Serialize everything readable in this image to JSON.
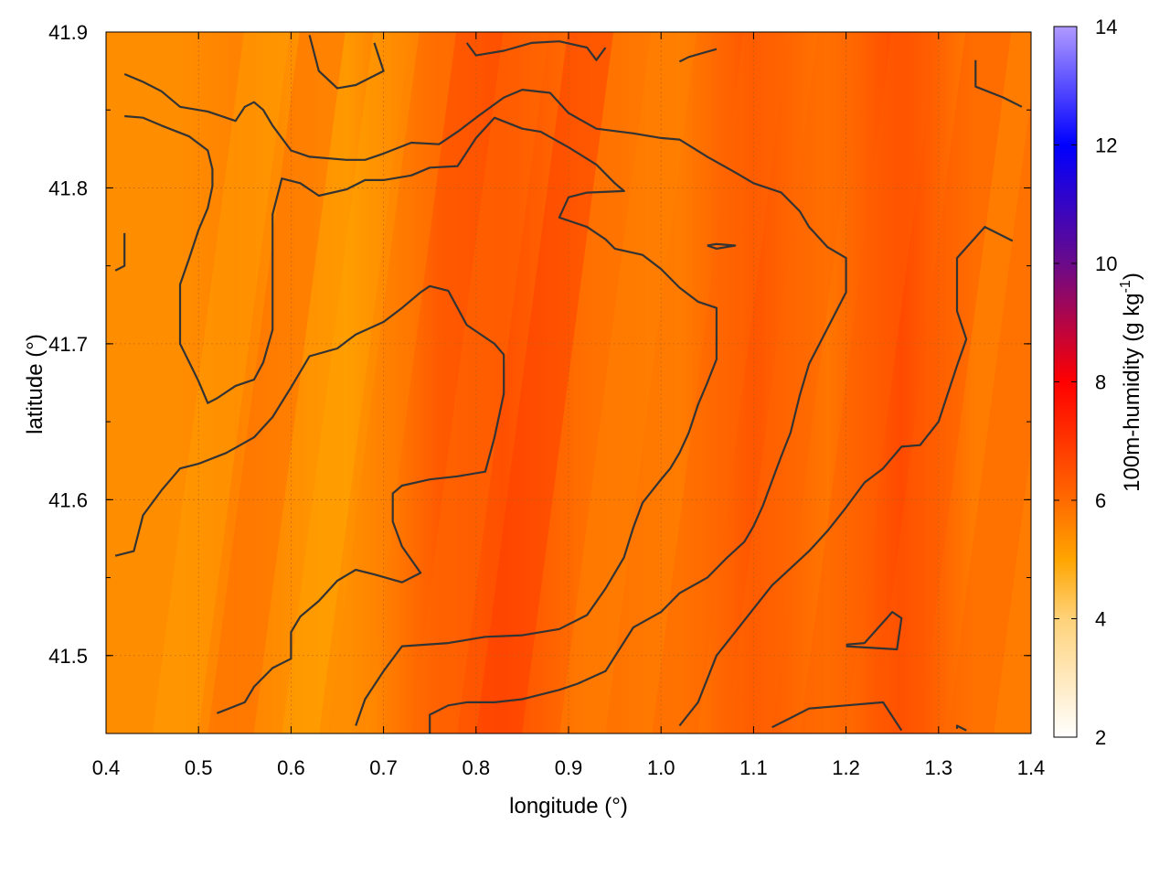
{
  "chart_data": {
    "type": "heatmap",
    "title": "",
    "xlabel": "longitude (°)",
    "ylabel": "latitude (°)",
    "xlim": [
      0.4,
      1.4
    ],
    "ylim": [
      41.45,
      41.9
    ],
    "x_ticks": [
      "0.4",
      "0.5",
      "0.6",
      "0.7",
      "0.8",
      "0.9",
      "1.0",
      "1.1",
      "1.2",
      "1.3",
      "1.4"
    ],
    "y_ticks": [
      "41.5",
      "41.6",
      "41.7",
      "41.8",
      "41.9"
    ],
    "grid": true,
    "colorbar": {
      "label_main": "100m-humidity (g kg",
      "label_sup": "-1",
      "label_end": ")",
      "range": [
        2,
        14
      ],
      "ticks": [
        "2",
        "4",
        "6",
        "8",
        "10",
        "12",
        "14"
      ],
      "colors": [
        {
          "value": 2,
          "color": "#ffffff"
        },
        {
          "value": 4,
          "color": "#ffd27a"
        },
        {
          "value": 5,
          "color": "#ffa500"
        },
        {
          "value": 6,
          "color": "#ff6a00"
        },
        {
          "value": 8,
          "color": "#ff0000"
        },
        {
          "value": 10,
          "color": "#6a0a8a"
        },
        {
          "value": 12,
          "color": "#0000ff"
        },
        {
          "value": 14,
          "color": "#b09aff"
        }
      ]
    },
    "field_streaks": [
      {
        "lon": 0.48,
        "value": 5.4
      },
      {
        "lon": 0.54,
        "value": 5.6
      },
      {
        "lon": 0.62,
        "value": 5.3
      },
      {
        "lon": 0.66,
        "value": 5.2
      },
      {
        "lon": 0.76,
        "value": 6.3
      },
      {
        "lon": 0.83,
        "value": 6.5
      },
      {
        "lon": 0.92,
        "value": 5.9
      },
      {
        "lon": 1.02,
        "value": 5.7
      },
      {
        "lon": 1.1,
        "value": 6.4
      },
      {
        "lon": 1.18,
        "value": 5.8
      },
      {
        "lon": 1.26,
        "value": 6.6
      },
      {
        "lon": 1.34,
        "value": 5.7
      }
    ],
    "contours": [
      [
        [
          0.42,
          41.873
        ],
        [
          0.44,
          41.868
        ],
        [
          0.46,
          41.862
        ],
        [
          0.48,
          41.852
        ],
        [
          0.51,
          41.849
        ],
        [
          0.54,
          41.843
        ],
        [
          0.55,
          41.852
        ],
        [
          0.56,
          41.855
        ],
        [
          0.57,
          41.85
        ],
        [
          0.58,
          41.84
        ],
        [
          0.6,
          41.824
        ],
        [
          0.62,
          41.82
        ],
        [
          0.66,
          41.818
        ],
        [
          0.68,
          41.818
        ],
        [
          0.7,
          41.822
        ],
        [
          0.73,
          41.829
        ],
        [
          0.76,
          41.828
        ],
        [
          0.78,
          41.836
        ],
        [
          0.8,
          41.845
        ],
        [
          0.83,
          41.858
        ],
        [
          0.85,
          41.863
        ],
        [
          0.88,
          41.861
        ],
        [
          0.9,
          41.848
        ],
        [
          0.93,
          41.838
        ],
        [
          0.97,
          41.835
        ],
        [
          1.0,
          41.832
        ],
        [
          1.02,
          41.831
        ],
        [
          1.05,
          41.82
        ],
        [
          1.08,
          41.81
        ],
        [
          1.1,
          41.803
        ],
        [
          1.13,
          41.797
        ],
        [
          1.15,
          41.785
        ],
        [
          1.16,
          41.775
        ],
        [
          1.18,
          41.762
        ],
        [
          1.2,
          41.755
        ],
        [
          1.2,
          41.733
        ],
        [
          1.18,
          41.71
        ],
        [
          1.16,
          41.687
        ],
        [
          1.15,
          41.667
        ],
        [
          1.14,
          41.643
        ],
        [
          1.13,
          41.628
        ],
        [
          1.12,
          41.612
        ],
        [
          1.11,
          41.596
        ],
        [
          1.1,
          41.583
        ],
        [
          1.09,
          41.573
        ],
        [
          1.07,
          41.562
        ],
        [
          1.05,
          41.55
        ],
        [
          1.02,
          41.54
        ],
        [
          1.0,
          41.528
        ],
        [
          0.97,
          41.518
        ],
        [
          0.94,
          41.49
        ],
        [
          0.91,
          41.482
        ],
        [
          0.89,
          41.478
        ],
        [
          0.85,
          41.472
        ],
        [
          0.82,
          41.47
        ],
        [
          0.79,
          41.47
        ],
        [
          0.77,
          41.468
        ],
        [
          0.75,
          41.462
        ],
        [
          0.75,
          41.449
        ]
      ],
      [
        [
          0.42,
          41.846
        ],
        [
          0.44,
          41.845
        ],
        [
          0.46,
          41.84
        ],
        [
          0.49,
          41.833
        ],
        [
          0.51,
          41.824
        ],
        [
          0.515,
          41.812
        ],
        [
          0.515,
          41.801
        ],
        [
          0.51,
          41.787
        ],
        [
          0.5,
          41.773
        ],
        [
          0.49,
          41.755
        ],
        [
          0.48,
          41.738
        ],
        [
          0.48,
          41.715
        ],
        [
          0.48,
          41.7
        ],
        [
          0.49,
          41.688
        ],
        [
          0.5,
          41.676
        ],
        [
          0.51,
          41.662
        ],
        [
          0.52,
          41.665
        ],
        [
          0.54,
          41.673
        ],
        [
          0.56,
          41.677
        ],
        [
          0.57,
          41.688
        ],
        [
          0.58,
          41.709
        ],
        [
          0.58,
          41.745
        ],
        [
          0.58,
          41.783
        ],
        [
          0.59,
          41.806
        ],
        [
          0.61,
          41.803
        ],
        [
          0.63,
          41.795
        ],
        [
          0.66,
          41.799
        ],
        [
          0.68,
          41.805
        ],
        [
          0.7,
          41.805
        ],
        [
          0.73,
          41.808
        ],
        [
          0.75,
          41.813
        ],
        [
          0.78,
          41.814
        ],
        [
          0.8,
          41.832
        ],
        [
          0.82,
          41.845
        ],
        [
          0.85,
          41.838
        ],
        [
          0.87,
          41.836
        ],
        [
          0.9,
          41.826
        ],
        [
          0.93,
          41.815
        ],
        [
          0.95,
          41.803
        ],
        [
          0.96,
          41.798
        ],
        [
          0.92,
          41.797
        ],
        [
          0.9,
          41.794
        ],
        [
          0.89,
          41.781
        ],
        [
          0.92,
          41.775
        ],
        [
          0.94,
          41.767
        ],
        [
          0.95,
          41.761
        ],
        [
          0.98,
          41.757
        ],
        [
          1.0,
          41.748
        ],
        [
          1.02,
          41.736
        ],
        [
          1.04,
          41.727
        ],
        [
          1.06,
          41.723
        ],
        [
          1.06,
          41.69
        ],
        [
          1.05,
          41.675
        ],
        [
          1.04,
          41.661
        ],
        [
          1.03,
          41.643
        ],
        [
          1.02,
          41.63
        ],
        [
          1.01,
          41.62
        ],
        [
          1.0,
          41.613
        ],
        [
          0.98,
          41.598
        ],
        [
          0.97,
          41.582
        ],
        [
          0.96,
          41.563
        ],
        [
          0.94,
          41.543
        ],
        [
          0.92,
          41.526
        ],
        [
          0.89,
          41.517
        ],
        [
          0.85,
          41.513
        ],
        [
          0.81,
          41.512
        ],
        [
          0.77,
          41.508
        ],
        [
          0.72,
          41.506
        ],
        [
          0.7,
          41.49
        ],
        [
          0.68,
          41.472
        ],
        [
          0.67,
          41.455
        ]
      ],
      [
        [
          0.41,
          41.564
        ],
        [
          0.43,
          41.567
        ],
        [
          0.44,
          41.59
        ],
        [
          0.46,
          41.606
        ],
        [
          0.48,
          41.62
        ],
        [
          0.5,
          41.623
        ],
        [
          0.53,
          41.63
        ],
        [
          0.56,
          41.64
        ],
        [
          0.58,
          41.653
        ],
        [
          0.6,
          41.672
        ],
        [
          0.62,
          41.692
        ],
        [
          0.65,
          41.697
        ],
        [
          0.67,
          41.706
        ],
        [
          0.7,
          41.714
        ],
        [
          0.72,
          41.723
        ],
        [
          0.74,
          41.733
        ],
        [
          0.75,
          41.737
        ],
        [
          0.77,
          41.734
        ],
        [
          0.79,
          41.712
        ],
        [
          0.82,
          41.7
        ],
        [
          0.83,
          41.693
        ],
        [
          0.83,
          41.668
        ],
        [
          0.82,
          41.64
        ],
        [
          0.81,
          41.618
        ],
        [
          0.78,
          41.615
        ],
        [
          0.75,
          41.613
        ],
        [
          0.72,
          41.609
        ],
        [
          0.71,
          41.604
        ],
        [
          0.71,
          41.586
        ],
        [
          0.72,
          41.57
        ],
        [
          0.74,
          41.553
        ],
        [
          0.72,
          41.547
        ],
        [
          0.69,
          41.552
        ],
        [
          0.67,
          41.555
        ],
        [
          0.65,
          41.548
        ],
        [
          0.63,
          41.535
        ],
        [
          0.61,
          41.525
        ],
        [
          0.6,
          41.515
        ],
        [
          0.6,
          41.498
        ],
        [
          0.58,
          41.492
        ],
        [
          0.56,
          41.48
        ],
        [
          0.55,
          41.47
        ],
        [
          0.52,
          41.463
        ]
      ],
      [
        [
          1.02,
          41.455
        ],
        [
          1.04,
          41.47
        ],
        [
          1.06,
          41.5
        ],
        [
          1.08,
          41.515
        ],
        [
          1.1,
          41.53
        ],
        [
          1.12,
          41.545
        ],
        [
          1.14,
          41.556
        ],
        [
          1.16,
          41.567
        ],
        [
          1.18,
          41.58
        ],
        [
          1.2,
          41.595
        ],
        [
          1.22,
          41.611
        ],
        [
          1.24,
          41.62
        ],
        [
          1.26,
          41.634
        ],
        [
          1.28,
          41.635
        ],
        [
          1.3,
          41.65
        ],
        [
          1.31,
          41.668
        ],
        [
          1.32,
          41.686
        ],
        [
          1.33,
          41.703
        ],
        [
          1.32,
          41.721
        ],
        [
          1.32,
          41.755
        ],
        [
          1.35,
          41.775
        ],
        [
          1.38,
          41.766
        ]
      ],
      [
        [
          1.12,
          41.454
        ],
        [
          1.14,
          41.46
        ],
        [
          1.16,
          41.466
        ],
        [
          1.2,
          41.468
        ],
        [
          1.24,
          41.47
        ],
        [
          1.26,
          41.452
        ]
      ],
      [
        [
          1.2,
          41.507
        ],
        [
          1.22,
          41.508
        ],
        [
          1.25,
          41.528
        ],
        [
          1.26,
          41.524
        ],
        [
          1.255,
          41.504
        ],
        [
          1.2,
          41.506
        ]
      ],
      [
        [
          1.05,
          41.763
        ],
        [
          1.06,
          41.764
        ],
        [
          1.08,
          41.763
        ],
        [
          1.06,
          41.761
        ],
        [
          1.05,
          41.763
        ]
      ],
      [
        [
          0.62,
          41.898
        ],
        [
          0.63,
          41.875
        ],
        [
          0.65,
          41.864
        ],
        [
          0.67,
          41.866
        ],
        [
          0.7,
          41.875
        ],
        [
          0.69,
          41.893
        ]
      ],
      [
        [
          0.79,
          41.893
        ],
        [
          0.8,
          41.885
        ],
        [
          0.83,
          41.888
        ],
        [
          0.86,
          41.893
        ],
        [
          0.89,
          41.894
        ],
        [
          0.92,
          41.89
        ],
        [
          0.93,
          41.882
        ],
        [
          0.94,
          41.89
        ]
      ],
      [
        [
          1.02,
          41.881
        ],
        [
          1.03,
          41.884
        ],
        [
          1.06,
          41.889
        ]
      ],
      [
        [
          1.34,
          41.882
        ],
        [
          1.34,
          41.865
        ],
        [
          1.37,
          41.858
        ],
        [
          1.39,
          41.852
        ]
      ],
      [
        [
          0.42,
          41.771
        ],
        [
          0.42,
          41.75
        ],
        [
          0.41,
          41.747
        ]
      ],
      [
        [
          1.32,
          41.453
        ],
        [
          1.32,
          41.455
        ],
        [
          1.33,
          41.452
        ]
      ]
    ]
  }
}
